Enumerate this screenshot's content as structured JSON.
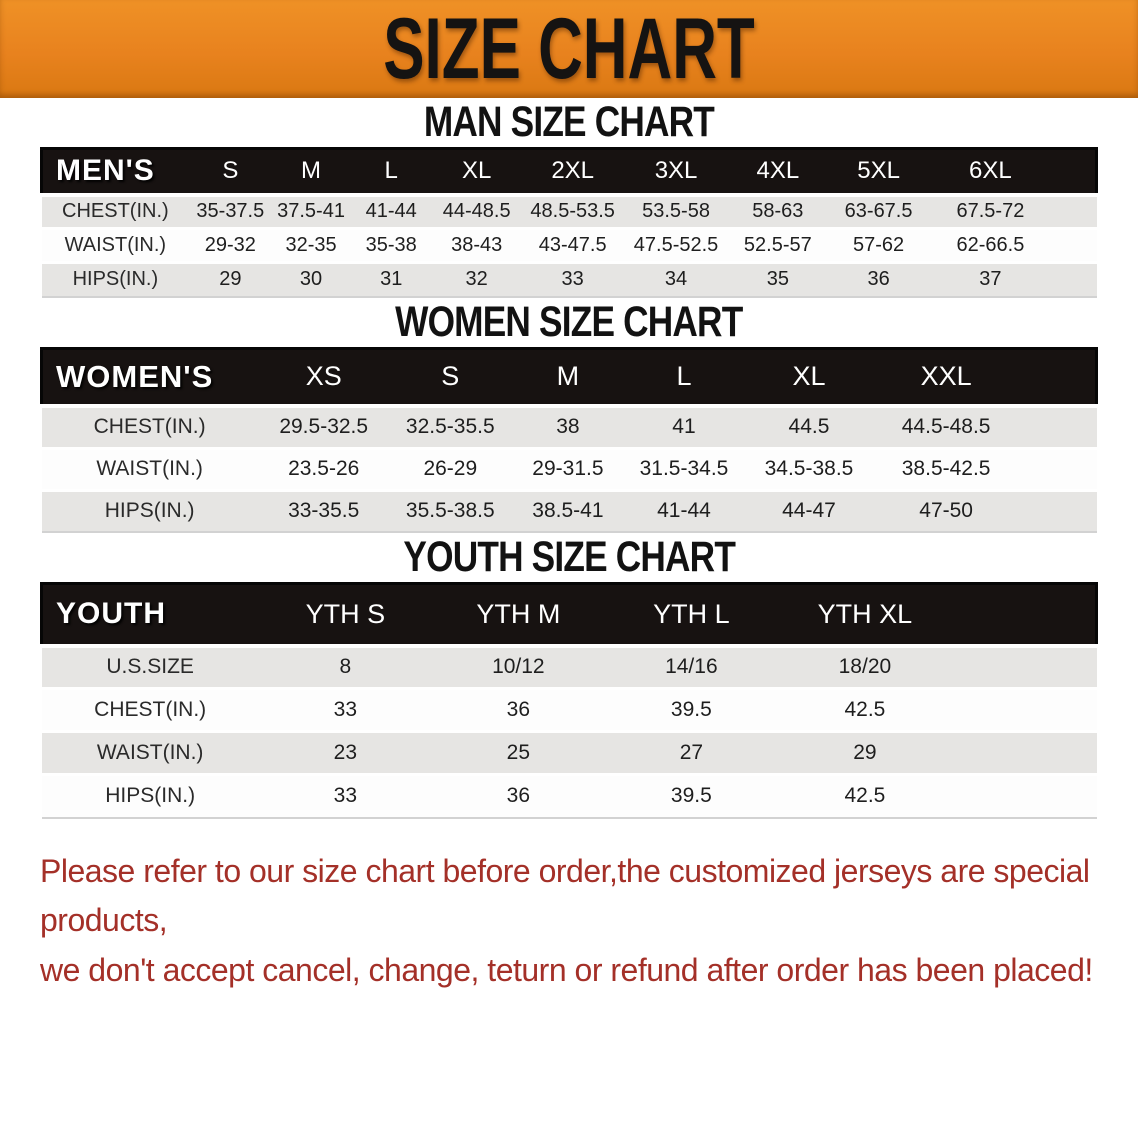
{
  "banner": {
    "title": "SIZE CHART",
    "bg_color": "#E8821E",
    "text_color": "#151312"
  },
  "colors": {
    "table_header_bg": "#171211",
    "row_stripe": "#E6E5E3",
    "disclaimer_red": "#A43028"
  },
  "sections": [
    {
      "heading": "MAN SIZE CHART",
      "table": {
        "header_label": "MEN'S",
        "columns": [
          "S",
          "M",
          "L",
          "XL",
          "2XL",
          "3XL",
          "4XL",
          "5XL",
          "6XL"
        ],
        "rows": [
          {
            "label": "CHEST(IN.)",
            "values": [
              "35-37.5",
              "37.5-41",
              "41-44",
              "44-48.5",
              "48.5-53.5",
              "53.5-58",
              "58-63",
              "63-67.5",
              "67.5-72"
            ]
          },
          {
            "label": "WAIST(IN.)",
            "values": [
              "29-32",
              "32-35",
              "35-38",
              "38-43",
              "43-47.5",
              "47.5-52.5",
              "52.5-57",
              "57-62",
              "62-66.5"
            ]
          },
          {
            "label": "HIPS(IN.)",
            "values": [
              "29",
              "30",
              "31",
              "32",
              "33",
              "34",
              "35",
              "36",
              "37"
            ]
          }
        ]
      }
    },
    {
      "heading": "WOMEN SIZE CHART",
      "table": {
        "header_label": "WOMEN'S",
        "columns": [
          "XS",
          "S",
          "M",
          "L",
          "XL",
          "XXL"
        ],
        "rows": [
          {
            "label": "CHEST(IN.)",
            "values": [
              "29.5-32.5",
              "32.5-35.5",
              "38",
              "41",
              "44.5",
              "44.5-48.5"
            ]
          },
          {
            "label": "WAIST(IN.)",
            "values": [
              "23.5-26",
              "26-29",
              "29-31.5",
              "31.5-34.5",
              "34.5-38.5",
              "38.5-42.5"
            ]
          },
          {
            "label": "HIPS(IN.)",
            "values": [
              "33-35.5",
              "35.5-38.5",
              "38.5-41",
              "41-44",
              "44-47",
              "47-50"
            ]
          }
        ]
      }
    },
    {
      "heading": "YOUTH SIZE CHART",
      "table": {
        "header_label": "YOUTH",
        "columns": [
          "YTH S",
          "YTH M",
          "YTH L",
          "YTH XL"
        ],
        "rows": [
          {
            "label": "U.S.SIZE",
            "values": [
              "8",
              "10/12",
              "14/16",
              "18/20"
            ]
          },
          {
            "label": "CHEST(IN.)",
            "values": [
              "33",
              "36",
              "39.5",
              "42.5"
            ]
          },
          {
            "label": "WAIST(IN.)",
            "values": [
              "23",
              "25",
              "27",
              "29"
            ]
          },
          {
            "label": "HIPS(IN.)",
            "values": [
              "33",
              "36",
              "39.5",
              "42.5"
            ]
          }
        ]
      }
    }
  ],
  "disclaimer": {
    "line1": "Please refer to our size chart before order,the customized jerseys are special products,",
    "line2": "we don't accept cancel, change, teturn or refund after order has been placed!"
  }
}
